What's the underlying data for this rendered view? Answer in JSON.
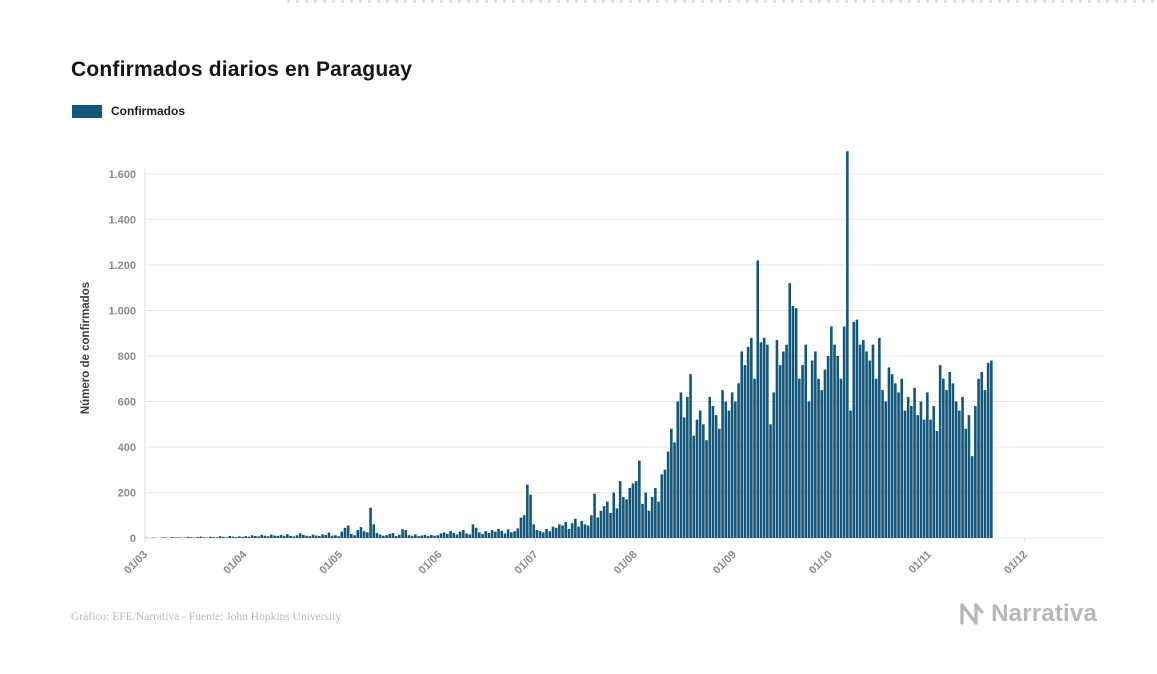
{
  "page": {
    "title": "Confirmados diarios en Paraguay",
    "legend_label": "Confirmados",
    "footer": "Gráfico: EFE/Narrativa - Fuente: John Hopkins University",
    "brand": "Narrativa"
  },
  "chart_data": {
    "type": "bar",
    "title": "Confirmados diarios en Paraguay",
    "xlabel": "",
    "ylabel": "Número de confirmados",
    "legend": [
      "Confirmados"
    ],
    "legend_position": "top-left",
    "grid": true,
    "bar_color": "#12567a",
    "grid_color": "#e7e7e7",
    "axis_color": "#dedede",
    "tick_label_color": "#8a8a8a",
    "ylim": [
      0,
      1600
    ],
    "ytick_values": [
      0,
      200,
      400,
      600,
      800,
      1000,
      1200,
      1400,
      1600
    ],
    "ytick_labels": [
      "0",
      "200",
      "400",
      "600",
      "800",
      "1.000",
      "1.200",
      "1.400",
      "1.600"
    ],
    "xticks": [
      {
        "label": "01/03",
        "day": 0
      },
      {
        "label": "01/04",
        "day": 31
      },
      {
        "label": "01/05",
        "day": 61
      },
      {
        "label": "01/06",
        "day": 92
      },
      {
        "label": "01/07",
        "day": 122
      },
      {
        "label": "01/08",
        "day": 153
      },
      {
        "label": "01/09",
        "day": 184
      },
      {
        "label": "01/10",
        "day": 214
      },
      {
        "label": "01/11",
        "day": 245
      },
      {
        "label": "01/12",
        "day": 275
      }
    ],
    "x_domain_days": 300,
    "frequency": "daily",
    "series_start": "01/03",
    "values": [
      1,
      0,
      2,
      1,
      0,
      3,
      2,
      1,
      4,
      2,
      3,
      1,
      2,
      5,
      3,
      2,
      4,
      6,
      3,
      2,
      5,
      4,
      3,
      8,
      5,
      3,
      9,
      6,
      4,
      7,
      5,
      8,
      6,
      12,
      9,
      7,
      14,
      10,
      8,
      15,
      11,
      9,
      13,
      10,
      17,
      9,
      7,
      12,
      21,
      14,
      10,
      8,
      15,
      11,
      9,
      16,
      13,
      24,
      10,
      12,
      8,
      28,
      45,
      55,
      18,
      12,
      35,
      48,
      30,
      25,
      133,
      60,
      22,
      15,
      10,
      12,
      18,
      22,
      9,
      14,
      38,
      35,
      12,
      10,
      16,
      8,
      11,
      14,
      9,
      13,
      10,
      12,
      20,
      25,
      18,
      30,
      22,
      15,
      28,
      35,
      20,
      16,
      60,
      45,
      25,
      18,
      30,
      22,
      35,
      28,
      40,
      32,
      20,
      38,
      25,
      30,
      42,
      90,
      100,
      235,
      190,
      60,
      35,
      30,
      25,
      40,
      30,
      50,
      45,
      60,
      55,
      70,
      40,
      65,
      85,
      50,
      75,
      60,
      55,
      100,
      195,
      90,
      120,
      140,
      160,
      110,
      200,
      130,
      250,
      180,
      170,
      220,
      240,
      250,
      340,
      150,
      200,
      120,
      180,
      220,
      160,
      280,
      300,
      380,
      480,
      420,
      600,
      640,
      530,
      620,
      720,
      450,
      520,
      560,
      500,
      430,
      620,
      580,
      540,
      480,
      650,
      600,
      560,
      640,
      600,
      680,
      820,
      760,
      840,
      880,
      700,
      1220,
      860,
      880,
      850,
      500,
      640,
      870,
      760,
      820,
      850,
      1120,
      1020,
      1010,
      700,
      760,
      850,
      600,
      780,
      820,
      700,
      650,
      740,
      800,
      930,
      850,
      800,
      700,
      930,
      1700,
      560,
      950,
      960,
      850,
      870,
      820,
      780,
      850,
      700,
      880,
      650,
      600,
      750,
      720,
      680,
      640,
      700,
      560,
      620,
      580,
      660,
      540,
      600,
      520,
      640,
      520,
      580,
      470,
      760,
      700,
      650,
      730,
      680,
      600,
      560,
      620,
      480,
      540,
      360,
      580,
      700,
      730,
      650,
      770,
      780
    ]
  }
}
